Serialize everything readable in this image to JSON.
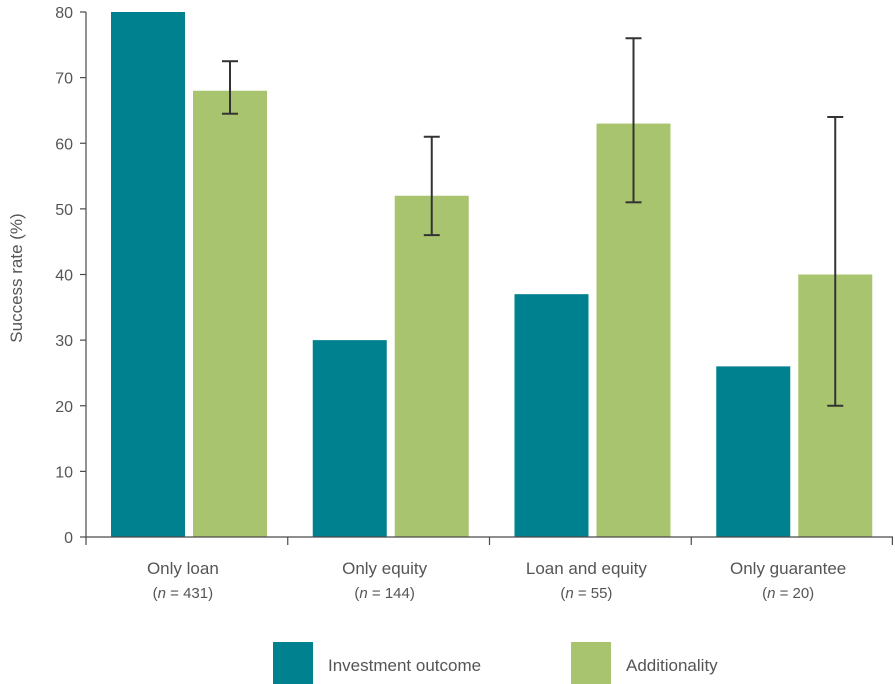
{
  "chart_data": {
    "type": "bar",
    "title": "",
    "xlabel": "",
    "ylabel": "Success rate (%)",
    "ylim": [
      0,
      80
    ],
    "yticks": [
      0,
      10,
      20,
      30,
      40,
      50,
      60,
      70,
      80
    ],
    "grid": false,
    "legend_placement": "bottom",
    "categories": [
      {
        "name": "Only loan",
        "n_prefix": "(",
        "n_var": "n",
        "n_text": " = 431)"
      },
      {
        "name": "Only equity",
        "n_prefix": "(",
        "n_var": "n",
        "n_text": " = 144)"
      },
      {
        "name": "Loan and equity",
        "n_prefix": "(",
        "n_var": "n",
        "n_text": " = 55)"
      },
      {
        "name": "Only guarantee",
        "n_prefix": "(",
        "n_var": "n",
        "n_text": " = 20)"
      }
    ],
    "series": [
      {
        "name": "Investment outcome",
        "color": "#00818f",
        "values": [
          80,
          30,
          37,
          26
        ]
      },
      {
        "name": "Additionality",
        "color": "#a8c46e",
        "values": [
          68,
          52,
          63,
          40
        ],
        "error_low": [
          64.5,
          46,
          51,
          20
        ],
        "error_high": [
          72.5,
          61,
          76,
          64
        ]
      }
    ]
  }
}
